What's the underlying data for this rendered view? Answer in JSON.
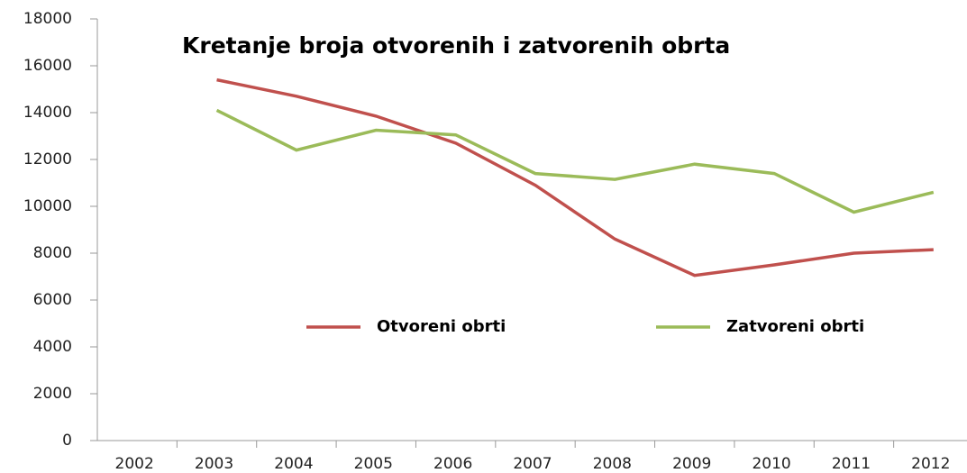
{
  "chart_data": {
    "type": "line",
    "title": "Kretanje broja otvorenih i zatvorenih obrta",
    "categories": [
      "2002",
      "2003",
      "2004",
      "2005",
      "2006",
      "2007",
      "2008",
      "2009",
      "2010",
      "2011",
      "2012"
    ],
    "series": [
      {
        "name": "Otvoreni obrti",
        "color": "#c0504d",
        "values": [
          null,
          15400,
          14700,
          13850,
          12700,
          10900,
          8600,
          7050,
          7500,
          8000,
          8150
        ]
      },
      {
        "name": "Zatvoreni obrti",
        "color": "#9bbb59",
        "values": [
          null,
          14100,
          12400,
          13250,
          13050,
          11400,
          11150,
          11800,
          11400,
          9750,
          10600
        ]
      }
    ],
    "ylim": [
      0,
      18000
    ],
    "yticks": [
      0,
      2000,
      4000,
      6000,
      8000,
      10000,
      12000,
      14000,
      16000,
      18000
    ],
    "grid": false,
    "legend": "center"
  }
}
